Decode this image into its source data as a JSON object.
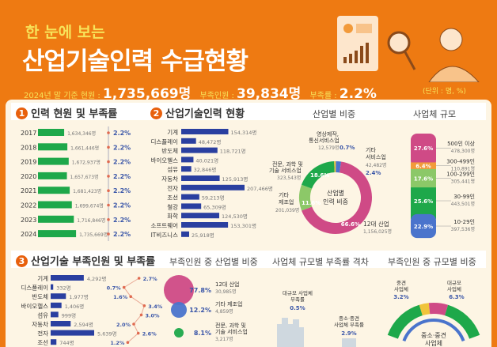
{
  "header": {
    "subtitle": "한 눈에 보는",
    "title": "산업기술인력 수급현황",
    "current_label": "2024년 말 기준 현원 :",
    "current_value": "1,735,669명",
    "shortage_label": "부족인원 :",
    "shortage_value": "39,834명",
    "rate_label": "부족률 :",
    "rate_value": "2.2%",
    "unit": "(단위 : 명, %)"
  },
  "sections": {
    "s1_num": "1",
    "s1_title": "인력 현원 및 부족률",
    "s2_num": "2",
    "s2_title": "산업기술인력 현황",
    "s2_sub1": "산업별 비중",
    "s2_sub2": "사업체 규모",
    "s3_num": "3",
    "s3_title": "산업기술 부족인원 및 부족률",
    "s3_sub1": "부족인원 중 산업별 비중",
    "s3_sub2": "사업체 규모별 부족률 격차",
    "s3_sub3": "부족인원 중 규모별 비중"
  },
  "colors": {
    "orange": "#ee7a12",
    "green": "#1ea84a",
    "navy": "#2a3fa0",
    "pink": "#cf4a86",
    "blue": "#4a74cc",
    "lightgreen": "#8cc868",
    "yellow": "#f0c43a",
    "ltorange": "#f29a3a",
    "red_dot": "#e06a50"
  },
  "chart_data": [
    {
      "type": "bar",
      "title": "인력 현원 및 부족률",
      "categories": [
        "2017",
        "2018",
        "2019",
        "2020",
        "2021",
        "2022",
        "2023",
        "2024"
      ],
      "series": [
        {
          "name": "현원",
          "values": [
            1634346,
            1661446,
            1672937,
            1657673,
            1681423,
            1699674,
            1716846,
            1735669
          ],
          "labels": [
            "1,634,346명",
            "1,661,446명",
            "1,672,937명",
            "1,657,673명",
            "1,681,423명",
            "1,699,674명",
            "1,716,846명",
            "1,735,669명"
          ]
        },
        {
          "name": "부족률",
          "values": [
            2.2,
            2.2,
            2.2,
            2.2,
            2.2,
            2.2,
            2.2,
            2.2
          ],
          "labels": [
            "2.2%",
            "2.2%",
            "2.2%",
            "2.2%",
            "2.2%",
            "2.2%",
            "2.2%",
            "2.2%"
          ]
        }
      ]
    },
    {
      "type": "bar",
      "title": "산업기술인력 현황",
      "categories": [
        "기계",
        "디스플레이",
        "반도체",
        "바이오헬스",
        "섬유",
        "자동차",
        "전자",
        "조선",
        "철강",
        "화학",
        "소프트웨어",
        "IT비즈니스"
      ],
      "values": [
        154314,
        48472,
        118721,
        40021,
        32846,
        125913,
        207466,
        59213,
        65309,
        124530,
        153301,
        25918
      ],
      "labels": [
        "154,314명",
        "48,472명",
        "118,721명",
        "40,021명",
        "32,846명",
        "125,913명",
        "207,466명",
        "59,213명",
        "65,309명",
        "124,530명",
        "153,301명",
        "25,918명"
      ]
    },
    {
      "type": "pie",
      "title": "산업별 비중",
      "center_label": "산업별 인력 비중",
      "slices": [
        {
          "name": "기타 서비스업",
          "value": 2.4,
          "count": "42,482명",
          "pct": "2.4%",
          "color": "#4a74cc"
        },
        {
          "name": "12대 산업",
          "value": 66.6,
          "count": "1,156,025명",
          "pct": "66.6%",
          "color": "#cf4a86"
        },
        {
          "name": "기타 제조업",
          "value": 11.6,
          "count": "201,039명",
          "pct": "11.6%",
          "color": "#8cc868"
        },
        {
          "name": "전문, 과학 및 기술 서비스업",
          "value": 18.6,
          "count": "323,543명",
          "pct": "18.6%",
          "color": "#1ea84a"
        },
        {
          "name": "영상제작, 통신서비스업",
          "value": 0.7,
          "count": "12,579명",
          "pct": "0.7%",
          "color": "#f0c43a"
        }
      ]
    },
    {
      "type": "bar",
      "title": "사업체 규모",
      "stacked": true,
      "segments": [
        {
          "name": "500인 이상",
          "value": 27.6,
          "count": "478,300명",
          "pct": "27.6%",
          "color": "#cf4a86"
        },
        {
          "name": "300-499인",
          "value": 6.4,
          "count": "110,891명",
          "pct": "6.4%",
          "color": "#f29a3a"
        },
        {
          "name": "100-299인",
          "value": 17.6,
          "count": "305,441명",
          "pct": "17.6%",
          "color": "#8cc868"
        },
        {
          "name": "30-99인",
          "value": 25.6,
          "count": "443,501명",
          "pct": "25.6%",
          "color": "#1ea84a"
        },
        {
          "name": "10-29인",
          "value": 22.9,
          "count": "397,536명",
          "pct": "22.9%",
          "color": "#4a74cc"
        }
      ]
    },
    {
      "type": "bar",
      "title": "산업기술 부족인원 및 부족률",
      "categories": [
        "기계",
        "디스플레이",
        "반도체",
        "바이오헬스",
        "섬유",
        "자동차",
        "전자",
        "조선"
      ],
      "series": [
        {
          "name": "부족인원",
          "values": [
            4292,
            332,
            1977,
            1406,
            999,
            2594,
            5639,
            744
          ],
          "labels": [
            "4,292명",
            "332명",
            "1,977명",
            "1,406명",
            "999명",
            "2,594명",
            "5,639명",
            "744명"
          ]
        },
        {
          "name": "부족률",
          "values": [
            2.7,
            0.7,
            1.6,
            3.4,
            3.0,
            2.0,
            2.6,
            1.2
          ],
          "labels": [
            "2.7%",
            "0.7%",
            "1.6%",
            "3.4%",
            "3.0%",
            "2.0%",
            "2.6%",
            "1.2%"
          ]
        }
      ]
    },
    {
      "type": "scatter",
      "title": "부족인원 중 산업별 비중",
      "points": [
        {
          "name": "12대 산업",
          "value": 77.8,
          "pct": "77.8%",
          "count": "30,985명",
          "color": "#cf4a86"
        },
        {
          "name": "기타 제조업",
          "value": 12.2,
          "pct": "12.2%",
          "count": "4,859명",
          "color": "#4a74cc"
        },
        {
          "name": "전문, 과학 및 기술 서비스업",
          "value": 8.1,
          "pct": "8.1%",
          "count": "3,217명",
          "color": "#1ea84a"
        }
      ]
    },
    {
      "type": "bar",
      "title": "사업체 규모별 부족률 격차",
      "categories": [
        "대규모 사업체 부족률",
        "중소·중견 사업체 부족률"
      ],
      "values": [
        0.5,
        2.9
      ],
      "labels": [
        "0.5%",
        "2.9%"
      ]
    },
    {
      "type": "pie",
      "title": "부족인원 중 규모별 비중",
      "center_label": "중소·중견 사업체",
      "slices": [
        {
          "name": "중견 사업체",
          "value": 3.2,
          "pct": "3.2%",
          "color": "#f0c43a"
        },
        {
          "name": "대규모 사업체",
          "value": 6.3,
          "pct": "6.3%",
          "color": "#cf4a86"
        },
        {
          "name": "중소·중견 사업체",
          "value": 90.5,
          "color": "#1ea84a"
        }
      ]
    }
  ]
}
